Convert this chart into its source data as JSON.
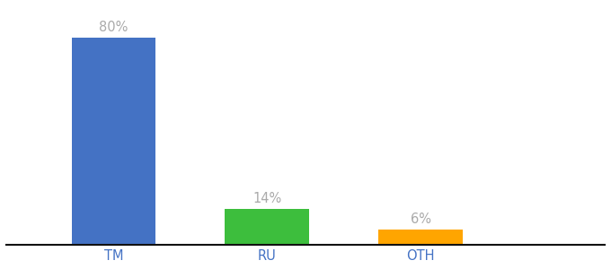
{
  "categories": [
    "TM",
    "RU",
    "OTH"
  ],
  "values": [
    80,
    14,
    6
  ],
  "labels": [
    "80%",
    "14%",
    "6%"
  ],
  "bar_colors": [
    "#4472C4",
    "#3DBE3D",
    "#FFA500"
  ],
  "background_color": "#ffffff",
  "label_color": "#aaaaaa",
  "axis_label_color": "#4472C4",
  "ylim": [
    0,
    92
  ],
  "bar_width": 0.55,
  "label_fontsize": 10.5,
  "tick_fontsize": 10.5,
  "x_positions": [
    1,
    2,
    3
  ],
  "xlim": [
    0.3,
    4.2
  ]
}
